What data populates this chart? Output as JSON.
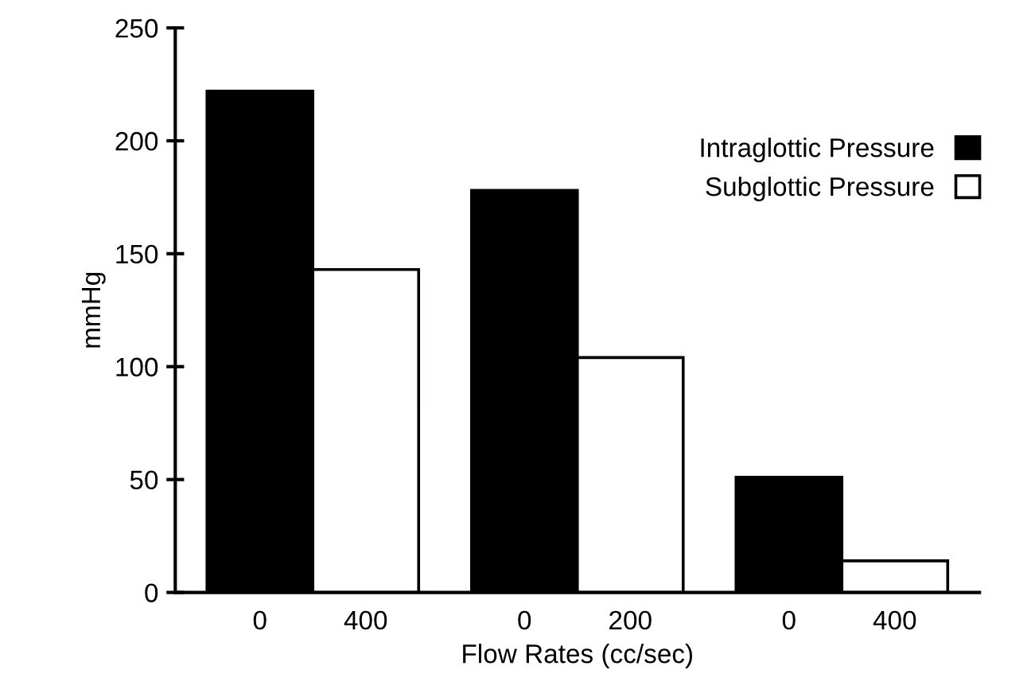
{
  "chart_data": {
    "type": "bar",
    "xlabel": "Flow Rates (cc/sec)",
    "ylabel": "mmHg",
    "categories": [
      "0",
      "400",
      "0",
      "200",
      "0",
      "400"
    ],
    "series": [
      {
        "name": "Intraglottic Pressure",
        "color": "#000000",
        "values": [
          222,
          null,
          178,
          null,
          51,
          null
        ]
      },
      {
        "name": "Subglottic Pressure",
        "color": "#ffffff",
        "values": [
          null,
          143,
          null,
          104,
          null,
          14
        ]
      }
    ],
    "ylim": [
      0,
      250
    ],
    "yticks": [
      0,
      50,
      100,
      150,
      200,
      250
    ],
    "grid": false,
    "legend": "right"
  }
}
